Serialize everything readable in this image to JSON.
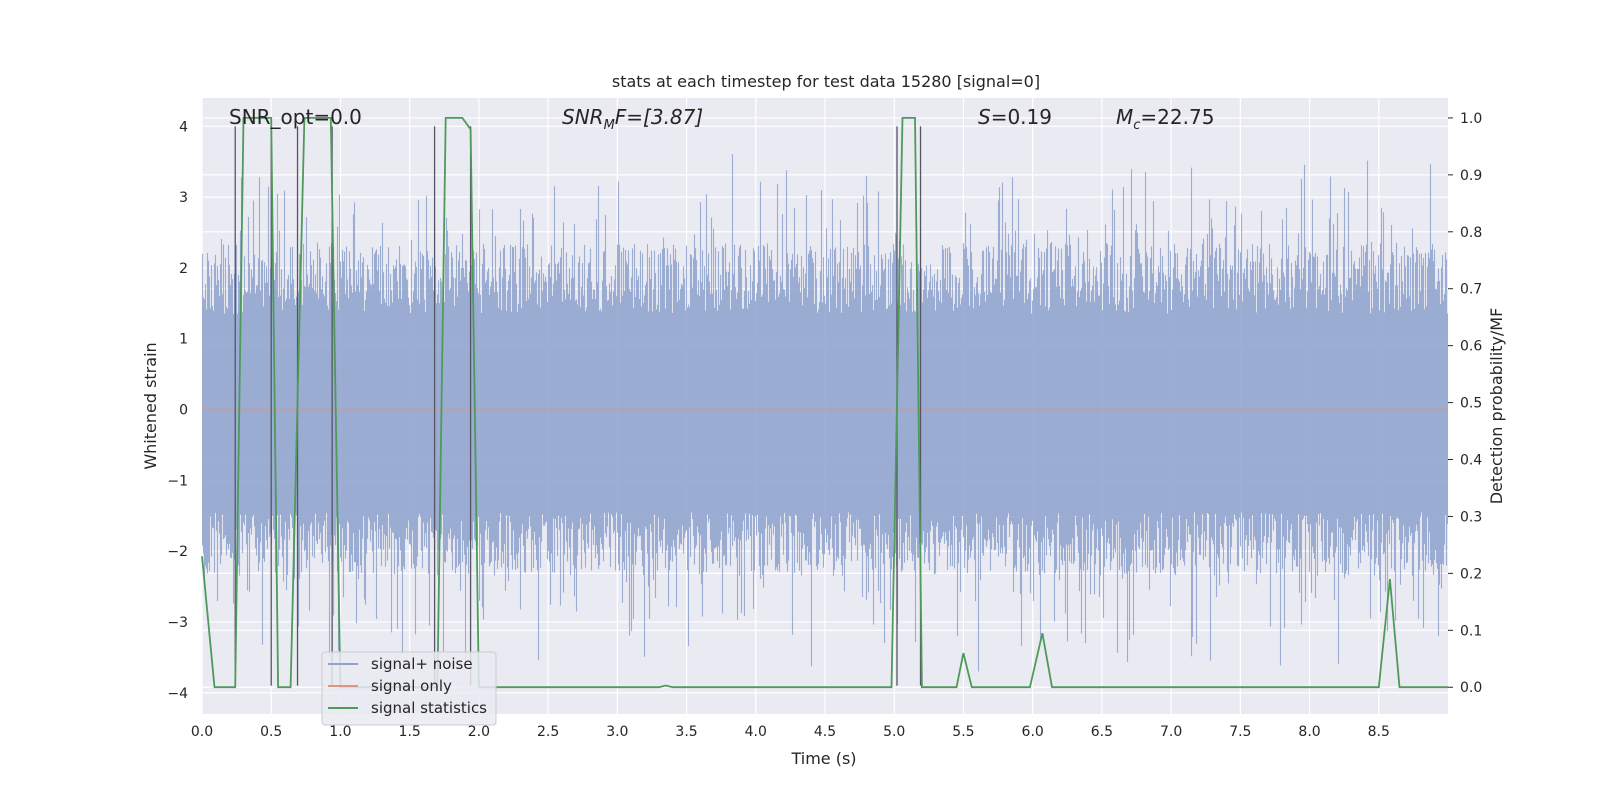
{
  "chart_data": {
    "type": "line",
    "title": "stats at each timestep for test data 15280 [signal=0]",
    "xlabel": "Time (s)",
    "ylabel": "Whitened strain",
    "y2label": "Detection probability/MF",
    "xlim": [
      0,
      9.0
    ],
    "ylim": [
      -4.3,
      4.4
    ],
    "y2lim": [
      -0.047,
      1.035
    ],
    "x_ticks": [
      "0.0",
      "0.5",
      "1.0",
      "1.5",
      "2.0",
      "2.5",
      "3.0",
      "3.5",
      "4.0",
      "4.5",
      "5.0",
      "5.5",
      "6.0",
      "6.5",
      "7.0",
      "7.5",
      "8.0",
      "8.5"
    ],
    "y_ticks": [
      "4",
      "3",
      "2",
      "1",
      "0",
      "−1",
      "−2",
      "−3",
      "−4"
    ],
    "y2_ticks": [
      "1.0",
      "0.9",
      "0.8",
      "0.7",
      "0.6",
      "0.5",
      "0.4",
      "0.3",
      "0.2",
      "0.1",
      "0.0"
    ],
    "grid": true,
    "legend_position": "lower-left",
    "annotations": {
      "snr_opt": "SNR_opt=0.0",
      "snr_mf_base": "SNR",
      "snr_mf_sub": "M",
      "snr_mf_rest": "F=[3.87]",
      "s_base": "S",
      "s_rest": "=0.19",
      "mc_base": "M",
      "mc_sub": "c",
      "mc_rest": "=22.75"
    },
    "series": [
      {
        "name": "signal+ noise",
        "color": "#8ea2cc",
        "description_of_values": "noisy whitened strain, approx. range -3.7 to 4.0"
      },
      {
        "name": "signal only",
        "color": "#e0967a",
        "y": 0
      },
      {
        "name": "signal statistics",
        "color": "#4e9a5a",
        "axis": "right",
        "points": [
          [
            0.0,
            0.23
          ],
          [
            0.09,
            0.0
          ],
          [
            0.24,
            0.0
          ],
          [
            0.3,
            1.0
          ],
          [
            0.5,
            1.0
          ],
          [
            0.55,
            0.0
          ],
          [
            0.64,
            0.0
          ],
          [
            0.74,
            1.0
          ],
          [
            0.93,
            1.0
          ],
          [
            1.0,
            0.0
          ],
          [
            1.7,
            0.0
          ],
          [
            1.76,
            1.0
          ],
          [
            1.88,
            1.0
          ],
          [
            1.94,
            0.98
          ],
          [
            2.0,
            0.0
          ],
          [
            3.3,
            0.0
          ],
          [
            3.35,
            0.003
          ],
          [
            3.4,
            0.0
          ],
          [
            4.98,
            0.0
          ],
          [
            5.06,
            1.0
          ],
          [
            5.15,
            1.0
          ],
          [
            5.2,
            0.0
          ],
          [
            5.45,
            0.0
          ],
          [
            5.5,
            0.06
          ],
          [
            5.56,
            0.0
          ],
          [
            5.98,
            0.0
          ],
          [
            6.07,
            0.095
          ],
          [
            6.14,
            0.0
          ],
          [
            8.5,
            0.0
          ],
          [
            8.58,
            0.19
          ],
          [
            8.65,
            0.0
          ],
          [
            9.0,
            0.0
          ]
        ]
      }
    ],
    "threshold_lines": {
      "color": "#555566",
      "x_positions": [
        0.24,
        0.5,
        0.69,
        0.94,
        1.68,
        1.94,
        5.02,
        5.19
      ]
    }
  }
}
